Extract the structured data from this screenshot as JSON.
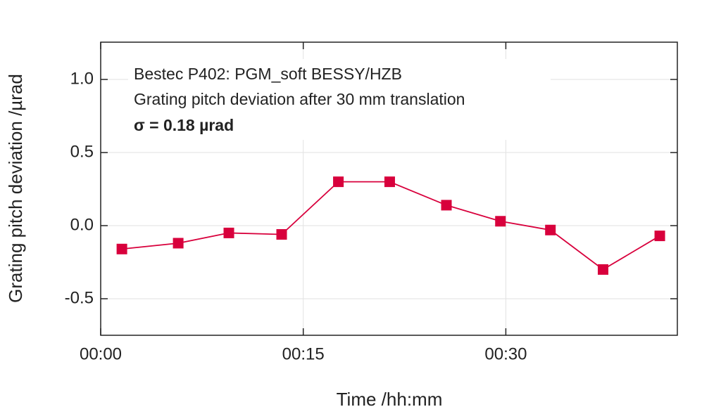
{
  "chart_data": {
    "type": "line",
    "annotations": [
      "Bestec P402: PGM_soft BESSY/HZB",
      "Grating pitch deviation after 30 mm translation",
      "σ = 0.18 µrad"
    ],
    "x_label": "Time /hh:mm",
    "y_label": "Grating pitch deviation /µrad",
    "x": [
      1.57,
      5.74,
      9.49,
      13.4,
      17.6,
      21.4,
      25.6,
      29.6,
      33.3,
      37.2,
      41.4
    ],
    "series": [
      {
        "name": "Grating pitch deviation",
        "color": "#d8003c",
        "values": [
          -0.16,
          -0.12,
          -0.05,
          -0.06,
          0.3,
          0.3,
          0.14,
          0.03,
          -0.03,
          -0.3,
          -0.07
        ]
      }
    ],
    "xlim": [
      0,
      42.7
    ],
    "xticks": [
      {
        "value": 0,
        "label": "00:00"
      },
      {
        "value": 15,
        "label": "00:15"
      },
      {
        "value": 30,
        "label": "00:30"
      }
    ],
    "ylim": [
      -0.75,
      1.255
    ],
    "yticks": [
      {
        "value": 1.0,
        "label": "1.0"
      },
      {
        "value": 0.5,
        "label": "0.5"
      },
      {
        "value": 0.0,
        "label": "0.0"
      },
      {
        "value": -0.5,
        "label": "-0.5"
      }
    ],
    "grid": true
  }
}
